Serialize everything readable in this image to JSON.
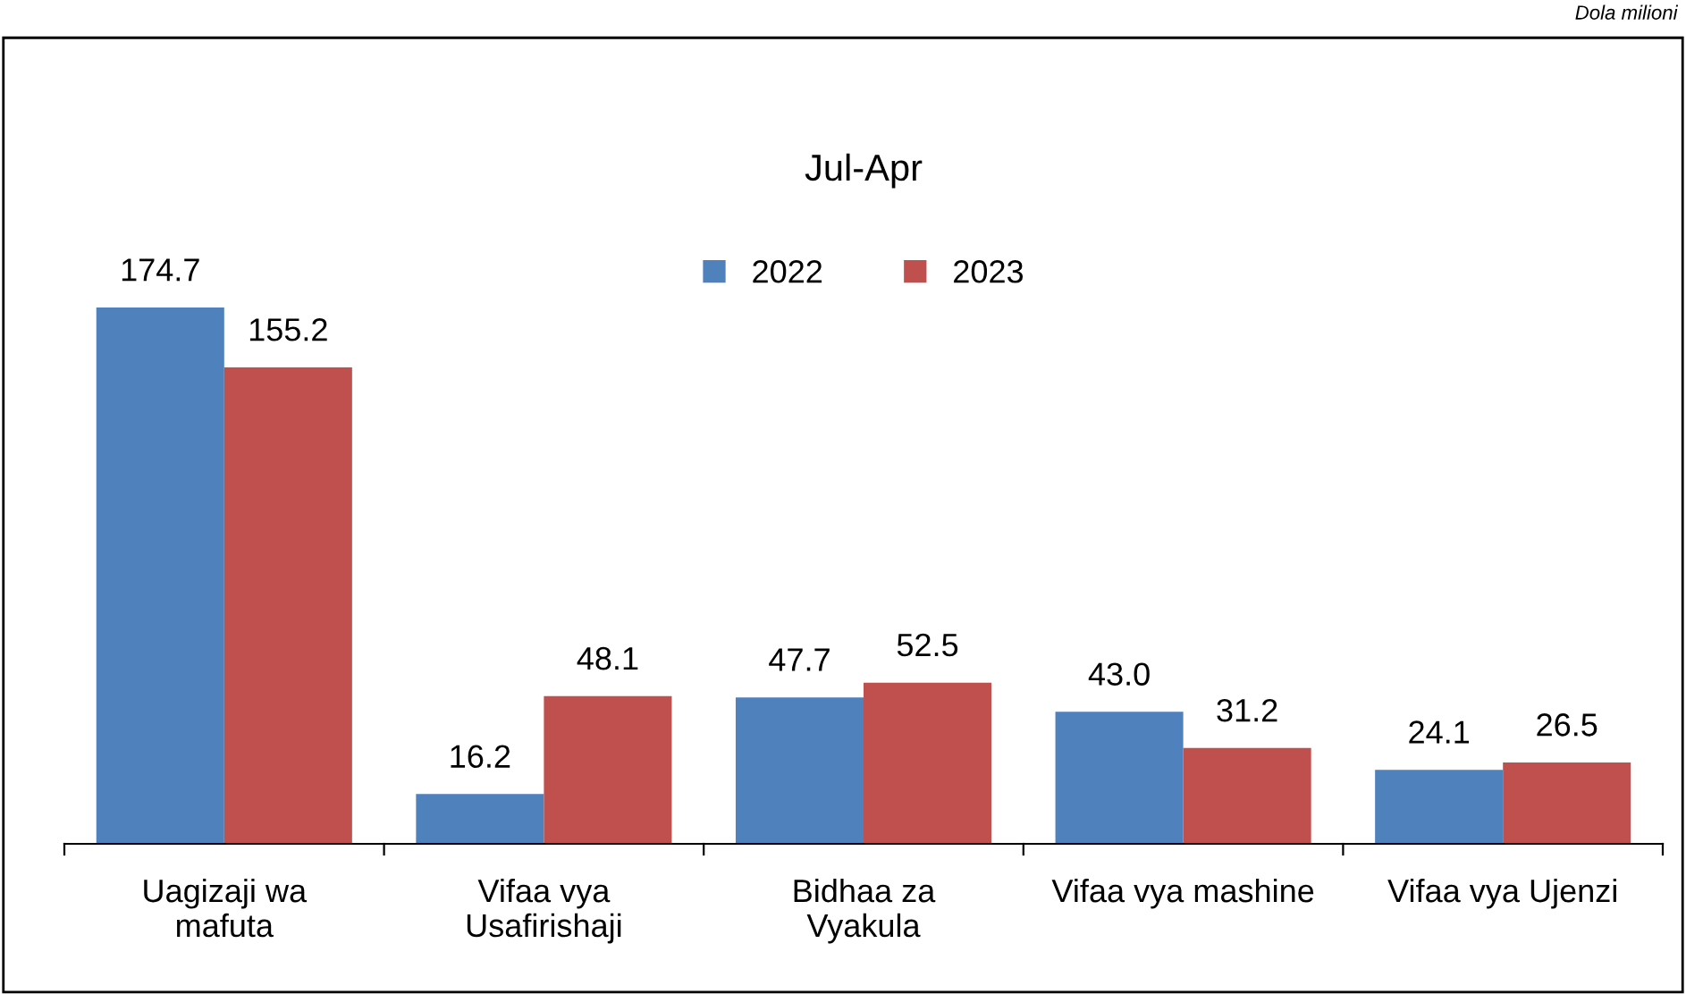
{
  "chart_data": {
    "type": "bar",
    "title": "Jul-Apr",
    "annotations": [
      "Dola milioni"
    ],
    "categories": [
      "Uagizaji wa\nmafuta",
      "Vifaa vya\nUsafirishaji",
      "Bidhaa za\nVyakula",
      "Vifaa vya mashine",
      "Vifaa vya Ujenzi"
    ],
    "series": [
      {
        "name": "2022",
        "color": "#4f81bd",
        "values": [
          174.7,
          16.2,
          47.7,
          43.0,
          24.1
        ],
        "value_labels": [
          "174.7",
          "16.2",
          "47.7",
          "43.0",
          "24.1"
        ]
      },
      {
        "name": "2023",
        "color": "#c0504d",
        "values": [
          155.2,
          48.1,
          52.5,
          31.2,
          26.5
        ],
        "value_labels": [
          "155.2",
          "48.1",
          "52.5",
          "31.2",
          "26.5"
        ]
      }
    ],
    "legend": "top",
    "grid": false
  }
}
